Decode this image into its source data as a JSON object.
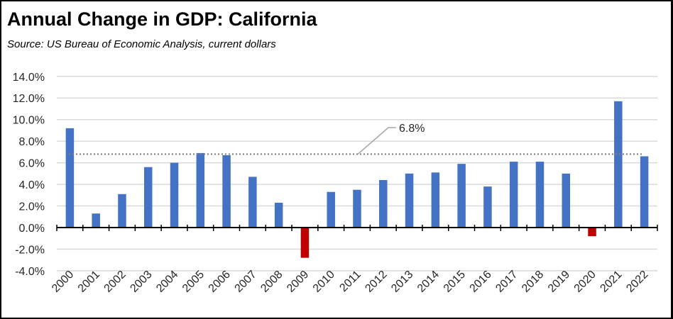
{
  "chart_data": {
    "type": "bar",
    "title": "Annual Change in GDP:  California",
    "subtitle": "Source:  US Bureau of Economic Analysis, current dollars",
    "categories": [
      "2000",
      "2001",
      "2002",
      "2003",
      "2004",
      "2005",
      "2006",
      "2007",
      "2008",
      "2009",
      "2010",
      "2011",
      "2012",
      "2013",
      "2014",
      "2015",
      "2016",
      "2017",
      "2018",
      "2019",
      "2020",
      "2021",
      "2022"
    ],
    "values": [
      9.2,
      1.3,
      3.1,
      5.6,
      6.0,
      6.9,
      6.7,
      4.7,
      2.3,
      -2.8,
      3.3,
      3.5,
      4.4,
      5.0,
      5.1,
      5.9,
      3.8,
      6.1,
      6.1,
      5.0,
      -0.8,
      11.7,
      6.6
    ],
    "ylim": [
      -4,
      14
    ],
    "yticks": [
      "-4.0%",
      "-2.0%",
      "0.0%",
      "2.0%",
      "4.0%",
      "6.0%",
      "8.0%",
      "10.0%",
      "12.0%",
      "14.0%"
    ],
    "ytick_values": [
      -4,
      -2,
      0,
      2,
      4,
      6,
      8,
      10,
      12,
      14
    ],
    "grid": true,
    "positive_color": "#4472C4",
    "negative_color": "#C00000",
    "average": {
      "value": 6.8,
      "label": "6.8%",
      "style": "dotted",
      "color": "#808080"
    },
    "xlabel": "",
    "ylabel": ""
  }
}
